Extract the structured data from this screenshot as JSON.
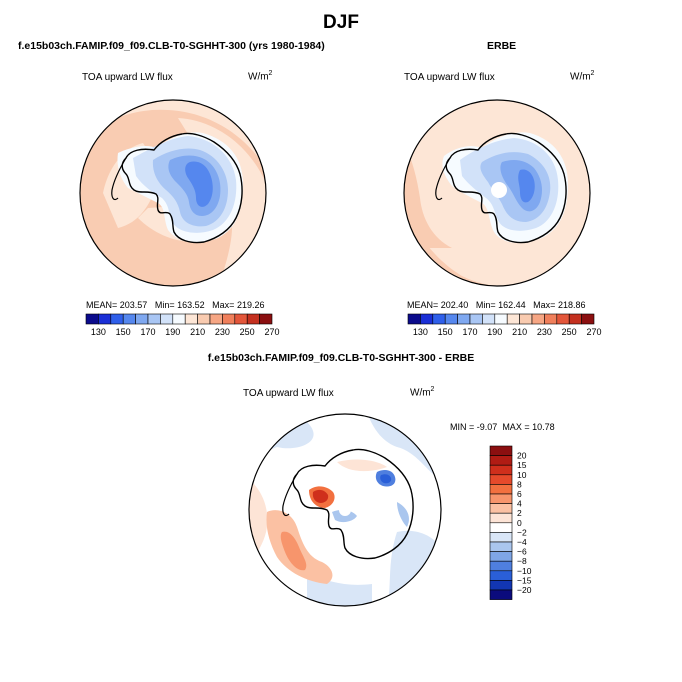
{
  "figure": {
    "title": "DJF",
    "model_label": "f.e15b03ch.FAMIP.f09_f09.CLB-T0-SGHHT-300 (yrs 1980-1984)",
    "obs_label": "ERBE",
    "diff_label": "f.e15b03ch.FAMIP.f09_f09.CLB-T0-SGHHT-300 - ERBE"
  },
  "chart_data": [
    {
      "type": "heatmap",
      "panel": "model",
      "variable": "TOA upward LW flux",
      "units": "W/m",
      "units_exponent": "2",
      "projection": "south polar stereographic",
      "stats": {
        "mean_label": "MEAN=",
        "mean": "203.57",
        "min_label": "Min=",
        "min": "163.52",
        "max_label": "Max=",
        "max": "219.26"
      },
      "colorbar": {
        "tick_labels": [
          "130",
          "150",
          "170",
          "190",
          "210",
          "230",
          "250",
          "270"
        ],
        "colors": [
          "#0b0b8c",
          "#1a2fd6",
          "#2f5fea",
          "#5587ee",
          "#7fa8f0",
          "#a9c6f4",
          "#d2e2f9",
          "#f6fbff",
          "#fde6d6",
          "#f9cbb0",
          "#f6a684",
          "#f07f5b",
          "#e3563a",
          "#c4301f",
          "#8b0f10"
        ]
      }
    },
    {
      "type": "heatmap",
      "panel": "obs",
      "variable": "TOA upward LW flux",
      "units": "W/m",
      "units_exponent": "2",
      "projection": "south polar stereographic",
      "stats": {
        "mean_label": "MEAN=",
        "mean": "202.40",
        "min_label": "Min=",
        "min": "162.44",
        "max_label": "Max=",
        "max": "218.86"
      },
      "colorbar": {
        "tick_labels": [
          "130",
          "150",
          "170",
          "190",
          "210",
          "230",
          "250",
          "270"
        ],
        "colors": [
          "#0b0b8c",
          "#1a2fd6",
          "#2f5fea",
          "#5587ee",
          "#7fa8f0",
          "#a9c6f4",
          "#d2e2f9",
          "#f6fbff",
          "#fde6d6",
          "#f9cbb0",
          "#f6a684",
          "#f07f5b",
          "#e3563a",
          "#c4301f",
          "#8b0f10"
        ]
      }
    },
    {
      "type": "heatmap",
      "panel": "difference",
      "variable": "TOA upward LW flux",
      "units": "W/m",
      "units_exponent": "2",
      "projection": "south polar stereographic",
      "stats": {
        "min_label": "MIN =",
        "min": "-9.07",
        "max_label": "MAX =",
        "max": "10.78"
      },
      "colorbar": {
        "orientation": "vertical",
        "tick_labels": [
          "20",
          "15",
          "10",
          "8",
          "6",
          "4",
          "2",
          "0",
          "−2",
          "−4",
          "−6",
          "−8",
          "−10",
          "−15",
          "−20"
        ],
        "colors": [
          "#8b0f10",
          "#b01c14",
          "#cf2f1c",
          "#e64a2b",
          "#f2703f",
          "#f7956c",
          "#fbc1a3",
          "#fde4d6",
          "#ffffff",
          "#d9e6f7",
          "#aac6ee",
          "#7fa6e6",
          "#4f7fdf",
          "#2a5fd8",
          "#1236b3",
          "#0b0b7d"
        ]
      }
    }
  ]
}
